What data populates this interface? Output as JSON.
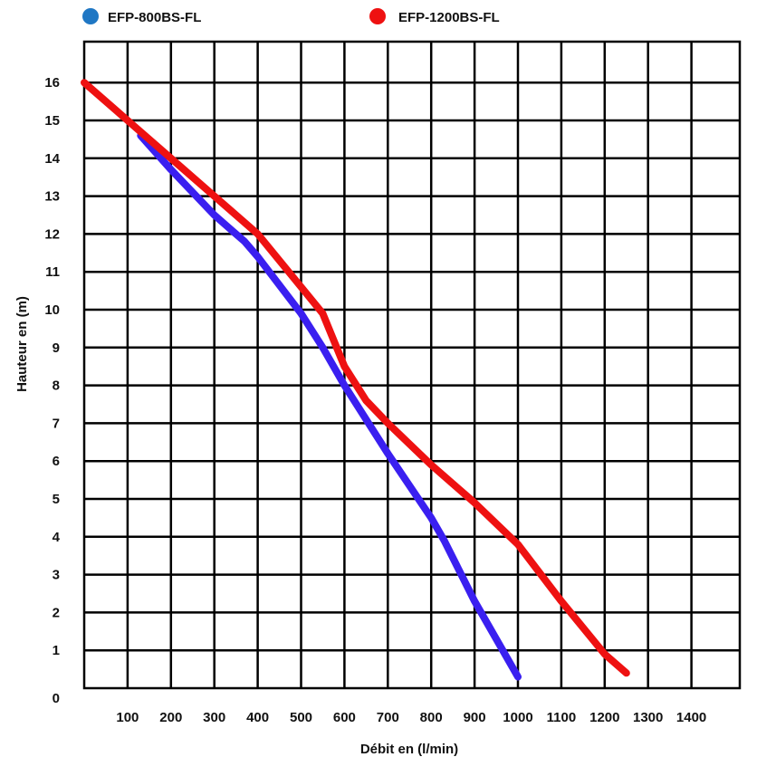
{
  "chart_data": {
    "type": "line",
    "title": "",
    "xlabel": "Débit en (l/min)",
    "ylabel": "Hauteur en (m)",
    "xlim": [
      0,
      1500
    ],
    "ylim": [
      0,
      16.5
    ],
    "grid": true,
    "legend_position": "top",
    "x_ticks": [
      "100",
      "200",
      "300",
      "400",
      "500",
      "600",
      "700",
      "800",
      "900",
      "1000",
      "1100",
      "1200",
      "1300",
      "1400"
    ],
    "y_ticks": [
      "0",
      "1",
      "2",
      "3",
      "4",
      "5",
      "6",
      "7",
      "8",
      "9",
      "10",
      "11",
      "12",
      "13",
      "14",
      "15",
      "16"
    ],
    "series": [
      {
        "name": "EFP-800BS-FL",
        "legend_marker_color": "#1f77c4",
        "line_color": "#3a1ff0",
        "x": [
          130,
          200,
          300,
          370,
          400,
          500,
          550,
          600,
          700,
          800,
          830,
          900,
          1000
        ],
        "y": [
          14.6,
          13.7,
          12.5,
          11.8,
          11.4,
          9.9,
          9.0,
          8.0,
          6.2,
          4.5,
          3.9,
          2.3,
          0.3
        ]
      },
      {
        "name": "EFP-1200BS-FL",
        "legend_marker_color": "#ee1111",
        "line_color": "#ee1111",
        "x": [
          0,
          100,
          200,
          300,
          400,
          500,
          550,
          600,
          650,
          700,
          800,
          900,
          1000,
          1100,
          1200,
          1250
        ],
        "y": [
          16.0,
          15.0,
          14.0,
          13.0,
          12.0,
          10.6,
          9.9,
          8.5,
          7.6,
          7.0,
          5.9,
          4.9,
          3.8,
          2.3,
          0.9,
          0.4
        ]
      }
    ]
  }
}
